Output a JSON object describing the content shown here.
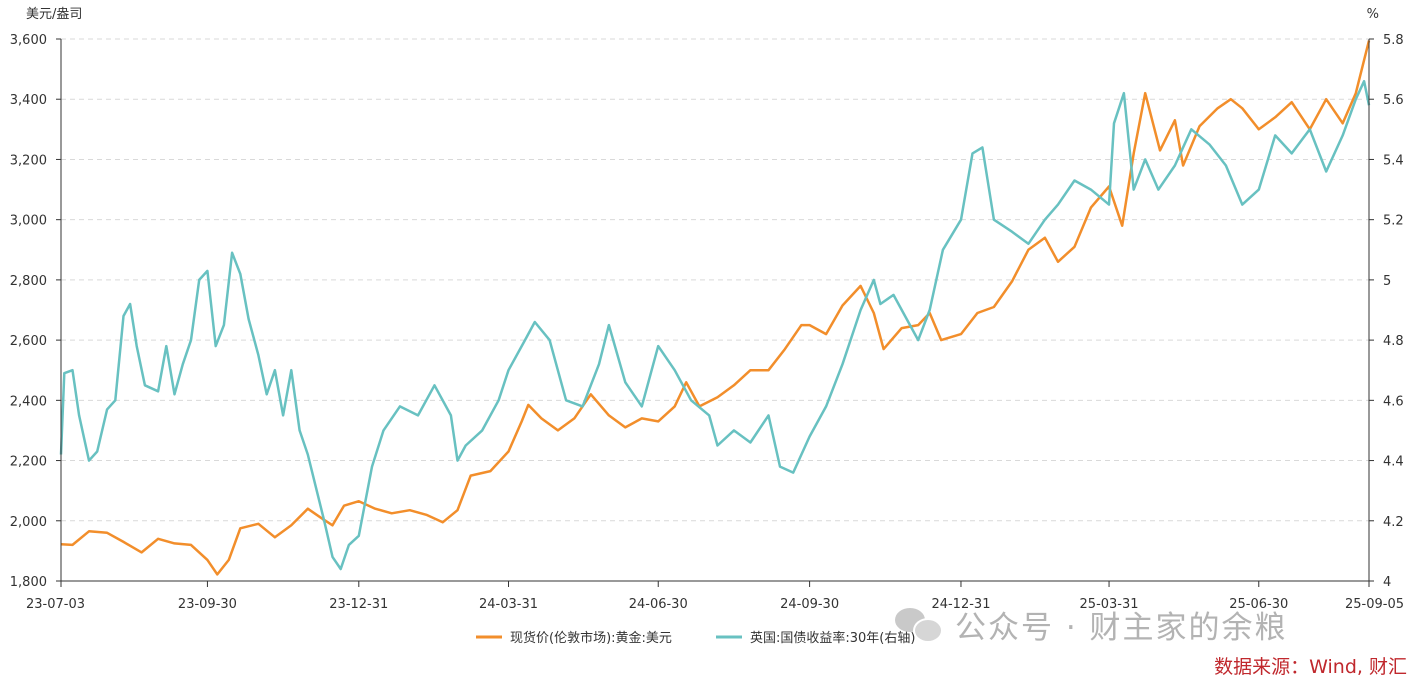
{
  "chart_data": {
    "type": "line",
    "y_left_unit": "美元/盎司",
    "y_right_unit": "%",
    "y_left_range": [
      1800,
      3600
    ],
    "y_left_ticks": [
      "1,800",
      "2,000",
      "2,200",
      "2,400",
      "2,600",
      "2,800",
      "3,000",
      "3,200",
      "3,400",
      "3,600"
    ],
    "y_right_range": [
      4,
      5.8
    ],
    "y_right_ticks": [
      "4",
      "4.2",
      "4.4",
      "4.6",
      "4.8",
      "5",
      "5.2",
      "5.4",
      "5.6",
      "5.8"
    ],
    "x_range": [
      "2023-07-03",
      "2025-09-05"
    ],
    "x_ticks": [
      {
        "date": "2023-07-03",
        "label": "23-07-03"
      },
      {
        "date": "2023-09-30",
        "label": "23-09-30"
      },
      {
        "date": "2023-12-31",
        "label": "23-12-31"
      },
      {
        "date": "2024-03-31",
        "label": "24-03-31"
      },
      {
        "date": "2024-06-30",
        "label": "24-06-30"
      },
      {
        "date": "2024-09-30",
        "label": "24-09-30"
      },
      {
        "date": "2024-12-31",
        "label": "24-12-31"
      },
      {
        "date": "2025-03-31",
        "label": "25-03-31"
      },
      {
        "date": "2025-06-30",
        "label": "25-06-30"
      },
      {
        "date": "2025-09-05",
        "label": "25-09-05"
      }
    ],
    "grid": true,
    "legend_position": "bottom",
    "series": [
      {
        "name": "现货价(伦敦市场):黄金:美元",
        "axis": "left",
        "color": "#f28e2b",
        "points": [
          [
            "2023-07-03",
            1922
          ],
          [
            "2023-07-10",
            1920
          ],
          [
            "2023-07-20",
            1965
          ],
          [
            "2023-07-31",
            1960
          ],
          [
            "2023-08-10",
            1930
          ],
          [
            "2023-08-21",
            1895
          ],
          [
            "2023-08-31",
            1940
          ],
          [
            "2023-09-10",
            1925
          ],
          [
            "2023-09-20",
            1920
          ],
          [
            "2023-09-30",
            1870
          ],
          [
            "2023-10-06",
            1822
          ],
          [
            "2023-10-13",
            1870
          ],
          [
            "2023-10-20",
            1975
          ],
          [
            "2023-10-31",
            1990
          ],
          [
            "2023-11-10",
            1945
          ],
          [
            "2023-11-20",
            1985
          ],
          [
            "2023-11-30",
            2040
          ],
          [
            "2023-12-08",
            2010
          ],
          [
            "2023-12-15",
            1985
          ],
          [
            "2023-12-22",
            2050
          ],
          [
            "2023-12-31",
            2065
          ],
          [
            "2024-01-10",
            2040
          ],
          [
            "2024-01-20",
            2025
          ],
          [
            "2024-01-31",
            2035
          ],
          [
            "2024-02-10",
            2020
          ],
          [
            "2024-02-20",
            1995
          ],
          [
            "2024-02-29",
            2035
          ],
          [
            "2024-03-08",
            2150
          ],
          [
            "2024-03-20",
            2165
          ],
          [
            "2024-03-31",
            2230
          ],
          [
            "2024-04-08",
            2330
          ],
          [
            "2024-04-12",
            2385
          ],
          [
            "2024-04-20",
            2340
          ],
          [
            "2024-04-30",
            2300
          ],
          [
            "2024-05-10",
            2340
          ],
          [
            "2024-05-20",
            2420
          ],
          [
            "2024-05-31",
            2350
          ],
          [
            "2024-06-10",
            2310
          ],
          [
            "2024-06-20",
            2340
          ],
          [
            "2024-06-30",
            2330
          ],
          [
            "2024-07-10",
            2380
          ],
          [
            "2024-07-17",
            2460
          ],
          [
            "2024-07-25",
            2380
          ],
          [
            "2024-08-05",
            2410
          ],
          [
            "2024-08-15",
            2450
          ],
          [
            "2024-08-25",
            2500
          ],
          [
            "2024-09-05",
            2500
          ],
          [
            "2024-09-15",
            2570
          ],
          [
            "2024-09-25",
            2650
          ],
          [
            "2024-09-30",
            2650
          ],
          [
            "2024-10-10",
            2620
          ],
          [
            "2024-10-20",
            2715
          ],
          [
            "2024-10-31",
            2780
          ],
          [
            "2024-11-08",
            2690
          ],
          [
            "2024-11-14",
            2570
          ],
          [
            "2024-11-25",
            2640
          ],
          [
            "2024-12-05",
            2650
          ],
          [
            "2024-12-12",
            2690
          ],
          [
            "2024-12-19",
            2600
          ],
          [
            "2024-12-31",
            2620
          ],
          [
            "2025-01-10",
            2690
          ],
          [
            "2025-01-20",
            2710
          ],
          [
            "2025-01-31",
            2795
          ],
          [
            "2025-02-10",
            2900
          ],
          [
            "2025-02-20",
            2940
          ],
          [
            "2025-02-28",
            2860
          ],
          [
            "2025-03-10",
            2910
          ],
          [
            "2025-03-20",
            3040
          ],
          [
            "2025-03-31",
            3110
          ],
          [
            "2025-04-08",
            2980
          ],
          [
            "2025-04-15",
            3220
          ],
          [
            "2025-04-22",
            3420
          ],
          [
            "2025-05-01",
            3230
          ],
          [
            "2025-05-10",
            3330
          ],
          [
            "2025-05-15",
            3180
          ],
          [
            "2025-05-25",
            3310
          ],
          [
            "2025-06-05",
            3370
          ],
          [
            "2025-06-13",
            3400
          ],
          [
            "2025-06-20",
            3370
          ],
          [
            "2025-06-30",
            3300
          ],
          [
            "2025-07-10",
            3340
          ],
          [
            "2025-07-20",
            3390
          ],
          [
            "2025-07-31",
            3300
          ],
          [
            "2025-08-10",
            3400
          ],
          [
            "2025-08-20",
            3320
          ],
          [
            "2025-08-28",
            3420
          ],
          [
            "2025-09-02",
            3530
          ],
          [
            "2025-09-05",
            3595
          ]
        ]
      },
      {
        "name": "英国:国债收益率:30年(右轴)",
        "axis": "right",
        "color": "#68c1c1",
        "points": [
          [
            "2023-07-03",
            4.42
          ],
          [
            "2023-07-05",
            4.69
          ],
          [
            "2023-07-10",
            4.7
          ],
          [
            "2023-07-14",
            4.55
          ],
          [
            "2023-07-20",
            4.4
          ],
          [
            "2023-07-25",
            4.43
          ],
          [
            "2023-07-31",
            4.57
          ],
          [
            "2023-08-05",
            4.6
          ],
          [
            "2023-08-10",
            4.88
          ],
          [
            "2023-08-14",
            4.92
          ],
          [
            "2023-08-18",
            4.78
          ],
          [
            "2023-08-23",
            4.65
          ],
          [
            "2023-08-31",
            4.63
          ],
          [
            "2023-09-05",
            4.78
          ],
          [
            "2023-09-10",
            4.62
          ],
          [
            "2023-09-15",
            4.72
          ],
          [
            "2023-09-20",
            4.8
          ],
          [
            "2023-09-25",
            5.0
          ],
          [
            "2023-09-30",
            5.03
          ],
          [
            "2023-10-05",
            4.78
          ],
          [
            "2023-10-10",
            4.85
          ],
          [
            "2023-10-15",
            5.09
          ],
          [
            "2023-10-20",
            5.02
          ],
          [
            "2023-10-25",
            4.87
          ],
          [
            "2023-10-31",
            4.75
          ],
          [
            "2023-11-05",
            4.62
          ],
          [
            "2023-11-10",
            4.7
          ],
          [
            "2023-11-15",
            4.55
          ],
          [
            "2023-11-20",
            4.7
          ],
          [
            "2023-11-25",
            4.5
          ],
          [
            "2023-11-30",
            4.42
          ],
          [
            "2023-12-05",
            4.31
          ],
          [
            "2023-12-10",
            4.2
          ],
          [
            "2023-12-15",
            4.08
          ],
          [
            "2023-12-20",
            4.04
          ],
          [
            "2023-12-25",
            4.12
          ],
          [
            "2023-12-31",
            4.15
          ],
          [
            "2024-01-08",
            4.38
          ],
          [
            "2024-01-15",
            4.5
          ],
          [
            "2024-01-25",
            4.58
          ],
          [
            "2024-02-05",
            4.55
          ],
          [
            "2024-02-15",
            4.65
          ],
          [
            "2024-02-25",
            4.55
          ],
          [
            "2024-02-29",
            4.4
          ],
          [
            "2024-03-05",
            4.45
          ],
          [
            "2024-03-15",
            4.5
          ],
          [
            "2024-03-25",
            4.6
          ],
          [
            "2024-03-31",
            4.7
          ],
          [
            "2024-04-10",
            4.8
          ],
          [
            "2024-04-16",
            4.86
          ],
          [
            "2024-04-25",
            4.8
          ],
          [
            "2024-05-05",
            4.6
          ],
          [
            "2024-05-15",
            4.58
          ],
          [
            "2024-05-25",
            4.72
          ],
          [
            "2024-05-31",
            4.85
          ],
          [
            "2024-06-10",
            4.66
          ],
          [
            "2024-06-20",
            4.58
          ],
          [
            "2024-06-30",
            4.78
          ],
          [
            "2024-07-10",
            4.7
          ],
          [
            "2024-07-20",
            4.6
          ],
          [
            "2024-07-31",
            4.55
          ],
          [
            "2024-08-05",
            4.45
          ],
          [
            "2024-08-15",
            4.5
          ],
          [
            "2024-08-25",
            4.46
          ],
          [
            "2024-09-05",
            4.55
          ],
          [
            "2024-09-12",
            4.38
          ],
          [
            "2024-09-20",
            4.36
          ],
          [
            "2024-09-30",
            4.48
          ],
          [
            "2024-10-10",
            4.58
          ],
          [
            "2024-10-20",
            4.72
          ],
          [
            "2024-10-31",
            4.9
          ],
          [
            "2024-11-08",
            5.0
          ],
          [
            "2024-11-12",
            4.92
          ],
          [
            "2024-11-20",
            4.95
          ],
          [
            "2024-11-30",
            4.85
          ],
          [
            "2024-12-05",
            4.8
          ],
          [
            "2024-12-12",
            4.9
          ],
          [
            "2024-12-20",
            5.1
          ],
          [
            "2024-12-31",
            5.2
          ],
          [
            "2025-01-07",
            5.42
          ],
          [
            "2025-01-13",
            5.44
          ],
          [
            "2025-01-20",
            5.2
          ],
          [
            "2025-01-31",
            5.16
          ],
          [
            "2025-02-10",
            5.12
          ],
          [
            "2025-02-20",
            5.2
          ],
          [
            "2025-02-28",
            5.25
          ],
          [
            "2025-03-10",
            5.33
          ],
          [
            "2025-03-20",
            5.3
          ],
          [
            "2025-03-31",
            5.25
          ],
          [
            "2025-04-03",
            5.52
          ],
          [
            "2025-04-09",
            5.62
          ],
          [
            "2025-04-15",
            5.3
          ],
          [
            "2025-04-22",
            5.4
          ],
          [
            "2025-04-30",
            5.3
          ],
          [
            "2025-05-10",
            5.38
          ],
          [
            "2025-05-20",
            5.5
          ],
          [
            "2025-05-31",
            5.45
          ],
          [
            "2025-06-10",
            5.38
          ],
          [
            "2025-06-20",
            5.25
          ],
          [
            "2025-06-30",
            5.3
          ],
          [
            "2025-07-10",
            5.48
          ],
          [
            "2025-07-20",
            5.42
          ],
          [
            "2025-07-31",
            5.5
          ],
          [
            "2025-08-10",
            5.36
          ],
          [
            "2025-08-20",
            5.48
          ],
          [
            "2025-08-28",
            5.6
          ],
          [
            "2025-09-02",
            5.66
          ],
          [
            "2025-09-05",
            5.58
          ]
        ]
      }
    ]
  },
  "legend": [
    {
      "label": "现货价(伦敦市场):黄金:美元",
      "color": "#f28e2b"
    },
    {
      "label": "英国:国债收益率:30年(右轴)",
      "color": "#68c1c1"
    }
  ],
  "watermark": {
    "icon": "wechat-icon",
    "text": "公众号 · 财主家的余粮"
  },
  "source_text": "数据来源：Wind, 财汇"
}
